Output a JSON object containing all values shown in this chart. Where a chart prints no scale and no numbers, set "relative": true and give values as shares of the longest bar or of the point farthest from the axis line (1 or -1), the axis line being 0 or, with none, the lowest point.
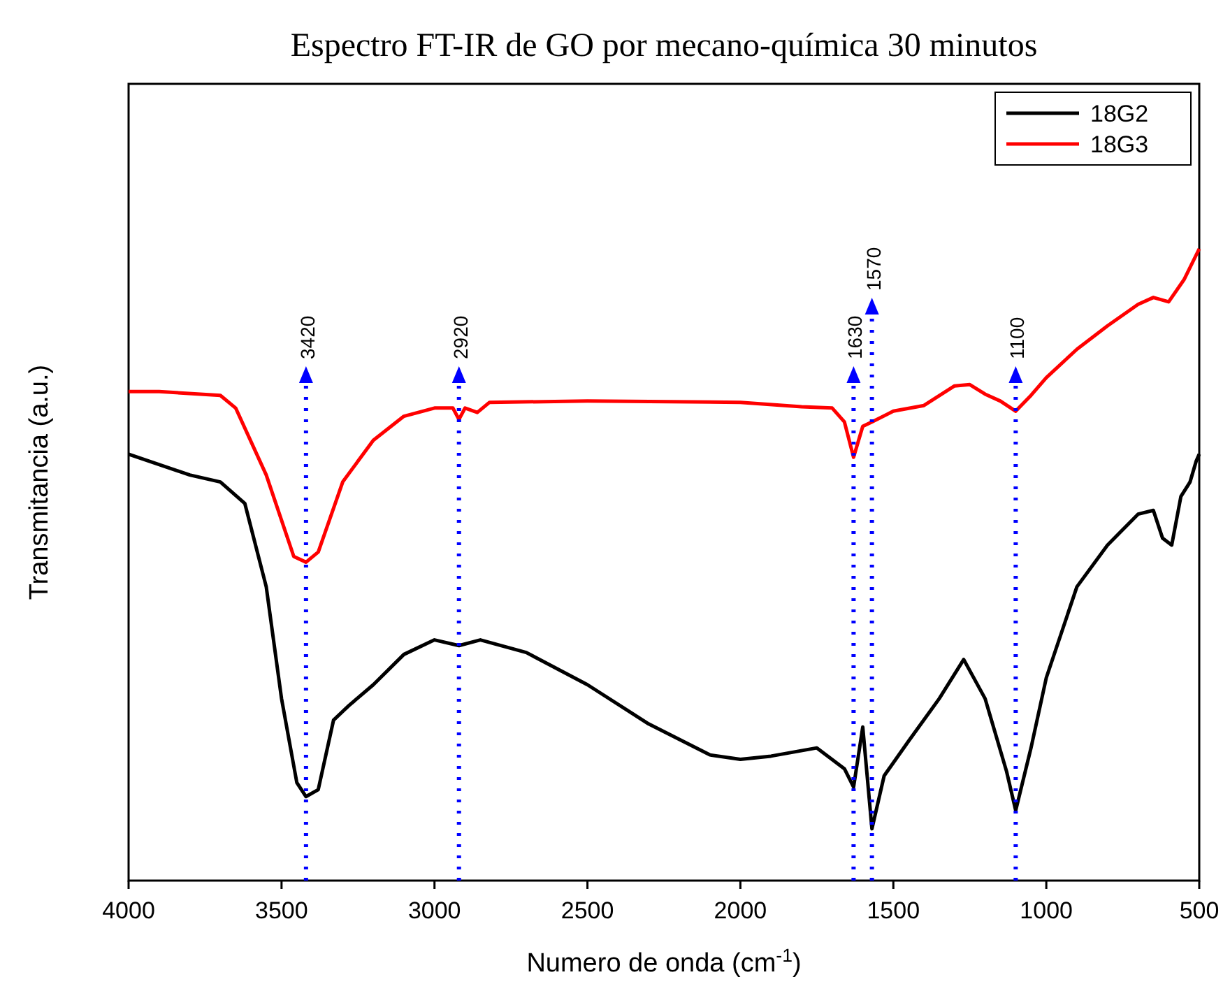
{
  "chart_data": {
    "type": "line",
    "title": "Espectro FT-IR de GO por mecano-química 30 minutos",
    "xlabel": "Numero de onda (cm$^{-1}$)",
    "ylabel": "Transmitancia (a.u.)",
    "relative": true,
    "xlim": [
      4000,
      500
    ],
    "xticks": [
      4000,
      3500,
      3000,
      2500,
      2000,
      1500,
      1000,
      500
    ],
    "legend": "top right",
    "grid": false,
    "series": [
      {
        "name": "18G2",
        "color": "#000000",
        "x": [
          4000,
          3800,
          3700,
          3620,
          3550,
          3500,
          3450,
          3420,
          3380,
          3330,
          3280,
          3200,
          3100,
          3000,
          2920,
          2850,
          2700,
          2500,
          2300,
          2100,
          2000,
          1900,
          1750,
          1660,
          1630,
          1600,
          1570,
          1530,
          1450,
          1350,
          1270,
          1200,
          1130,
          1100,
          1050,
          1000,
          900,
          800,
          700,
          650,
          620,
          590,
          560,
          530,
          510,
          500
        ],
        "values": [
          0.675,
          0.642,
          0.631,
          0.597,
          0.465,
          0.288,
          0.155,
          0.133,
          0.144,
          0.254,
          0.277,
          0.31,
          0.358,
          0.381,
          0.372,
          0.381,
          0.361,
          0.31,
          0.248,
          0.199,
          0.192,
          0.197,
          0.21,
          0.177,
          0.148,
          0.243,
          0.082,
          0.166,
          0.221,
          0.288,
          0.35,
          0.288,
          0.173,
          0.111,
          0.21,
          0.321,
          0.465,
          0.531,
          0.58,
          0.586,
          0.542,
          0.531,
          0.608,
          0.631,
          0.664,
          0.675
        ]
      },
      {
        "name": "18G3",
        "color": "#ff0000",
        "x": [
          4000,
          3900,
          3700,
          3650,
          3550,
          3460,
          3420,
          3380,
          3300,
          3200,
          3100,
          3000,
          2940,
          2920,
          2900,
          2860,
          2820,
          2500,
          2000,
          1800,
          1700,
          1660,
          1630,
          1600,
          1570,
          1500,
          1400,
          1300,
          1250,
          1200,
          1150,
          1100,
          1050,
          1000,
          900,
          800,
          700,
          650,
          600,
          550,
          500
        ],
        "values": [
          0.774,
          0.774,
          0.768,
          0.748,
          0.642,
          0.513,
          0.504,
          0.52,
          0.631,
          0.697,
          0.735,
          0.748,
          0.748,
          0.73,
          0.748,
          0.741,
          0.757,
          0.759,
          0.757,
          0.75,
          0.748,
          0.726,
          0.67,
          0.719,
          0.726,
          0.743,
          0.752,
          0.783,
          0.785,
          0.77,
          0.759,
          0.743,
          0.768,
          0.796,
          0.841,
          0.878,
          0.912,
          0.923,
          0.916,
          0.951,
          1.0
        ]
      }
    ],
    "ref_lines": [
      {
        "axis": "x",
        "value": 3420,
        "label": "3420",
        "color": "#0000ff",
        "line_style": "dotted"
      },
      {
        "axis": "x",
        "value": 2920,
        "label": "2920",
        "color": "#0000ff",
        "line_style": "dotted"
      },
      {
        "axis": "x",
        "value": 1630,
        "label": "1630",
        "color": "#0000ff",
        "line_style": "dotted"
      },
      {
        "axis": "x",
        "value": 1570,
        "label": "1570",
        "color": "#0000ff",
        "line_style": "dotted"
      },
      {
        "axis": "x",
        "value": 1100,
        "label": "1100",
        "color": "#0000ff",
        "line_style": "dotted"
      }
    ]
  }
}
